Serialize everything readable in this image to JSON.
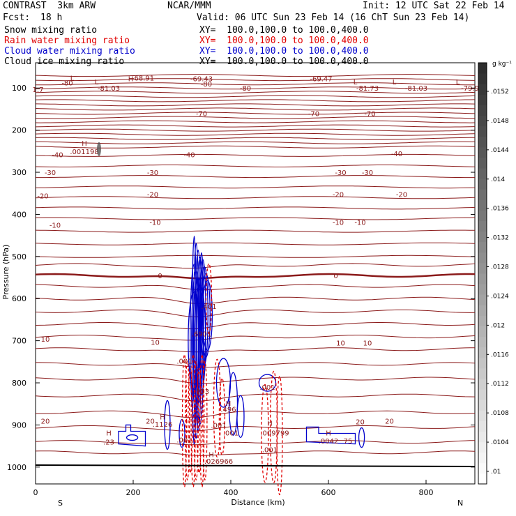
{
  "header": {
    "model": "CONTRAST  3km ARW",
    "center": "NCAR/MMM",
    "init": "Init: 12 UTC Sat 22 Feb 14",
    "fcst_label": "Fcst:",
    "fcst_value": "18 h",
    "valid": "Valid: 06 UTC Sun 23 Feb 14 (16 ChT Sun 23 Feb 14)"
  },
  "legend": [
    {
      "label": "Snow mixing ratio",
      "xy": "XY=  100.0,100.0 to 100.0,400.0",
      "color": "#000000"
    },
    {
      "label": "Rain water mixing ratio",
      "xy": "XY=  100.0,100.0 to 100.0,400.0",
      "color": "#e00000"
    },
    {
      "label": "Cloud water mixing ratio",
      "xy": "XY=  100.0,100.0 to 100.0,400.0",
      "color": "#0000cc"
    },
    {
      "label": "Cloud ice mixing ratio",
      "xy": "XY=  100.0,100.0 to 100.0,400.0",
      "color": "#000000"
    }
  ],
  "chart_data": {
    "type": "cross-section contour",
    "xlabel": "Distance (km)",
    "ylabel": "Pressure (hPa)",
    "xlim": [
      0,
      900
    ],
    "ylim": [
      1040,
      40
    ],
    "x_ticks": [
      "0",
      "200",
      "400",
      "600",
      "800"
    ],
    "y_ticks": [
      "100",
      "200",
      "300",
      "400",
      "500",
      "600",
      "700",
      "800",
      "900",
      "1000"
    ],
    "x_end_labels": {
      "left": "S",
      "right": "N"
    },
    "colorbar": {
      "unit": "g kg⁻¹",
      "labels": [
        ".0152",
        ".0148",
        ".0144",
        ".014",
        ".0136",
        ".0132",
        ".0128",
        ".0124",
        ".012",
        ".0116",
        ".0112",
        ".0108",
        ".0104",
        ".01"
      ],
      "range": [
        0.01,
        0.0156
      ]
    },
    "temperature_contours": [
      -80,
      -70,
      -60,
      -50,
      -40,
      -30,
      -20,
      -10,
      0,
      10,
      20
    ],
    "contour_labels": [
      {
        "text": "-80",
        "x": 65,
        "p": 87
      },
      {
        "text": "-80",
        "x": 350,
        "p": 90
      },
      {
        "text": "-80",
        "x": 430,
        "p": 100
      },
      {
        "text": "-68.91",
        "x": 220,
        "p": 76
      },
      {
        "text": "-69.43",
        "x": 340,
        "p": 77
      },
      {
        "text": "-69.47",
        "x": 585,
        "p": 77
      },
      {
        "text": "-81.03",
        "x": 150,
        "p": 100
      },
      {
        "text": "-81.73",
        "x": 680,
        "p": 100
      },
      {
        "text": "-81.03",
        "x": 780,
        "p": 100
      },
      {
        "text": "-79.9",
        "x": 890,
        "p": 100
      },
      {
        "text": "1.7",
        "x": 5,
        "p": 103
      },
      {
        "text": "-70",
        "x": 340,
        "p": 160
      },
      {
        "text": "-70",
        "x": 570,
        "p": 160
      },
      {
        "text": "-70",
        "x": 685,
        "p": 160
      },
      {
        "text": "-40",
        "x": 45,
        "p": 258
      },
      {
        "text": "-40",
        "x": 315,
        "p": 258
      },
      {
        "text": "-40",
        "x": 740,
        "p": 255
      },
      {
        "text": "-30",
        "x": 30,
        "p": 300
      },
      {
        "text": "-30",
        "x": 240,
        "p": 300
      },
      {
        "text": "-30",
        "x": 625,
        "p": 300
      },
      {
        "text": "-30",
        "x": 680,
        "p": 300
      },
      {
        "text": "-20",
        "x": 15,
        "p": 355
      },
      {
        "text": "-20",
        "x": 240,
        "p": 352
      },
      {
        "text": "-20",
        "x": 620,
        "p": 352
      },
      {
        "text": "-20",
        "x": 750,
        "p": 352
      },
      {
        "text": "-10",
        "x": 40,
        "p": 425
      },
      {
        "text": "-10",
        "x": 245,
        "p": 418
      },
      {
        "text": "-10",
        "x": 620,
        "p": 418
      },
      {
        "text": "-10",
        "x": 665,
        "p": 418
      },
      {
        "text": "0",
        "x": 255,
        "p": 545
      },
      {
        "text": "0",
        "x": 615,
        "p": 545
      },
      {
        "text": "10",
        "x": 20,
        "p": 696
      },
      {
        "text": "10",
        "x": 245,
        "p": 703
      },
      {
        "text": "10",
        "x": 625,
        "p": 705
      },
      {
        "text": "10",
        "x": 680,
        "p": 705
      },
      {
        "text": "20",
        "x": 20,
        "p": 890
      },
      {
        "text": "20",
        "x": 235,
        "p": 890
      },
      {
        "text": "20",
        "x": 665,
        "p": 892
      },
      {
        "text": "20",
        "x": 725,
        "p": 890
      }
    ],
    "extrema_labels": [
      {
        "text": "H",
        "x": 195,
        "p": 77,
        "color": "#8b1a1a"
      },
      {
        "text": "L",
        "x": 75,
        "p": 76,
        "color": "#8b1a1a"
      },
      {
        "text": "L",
        "x": 125,
        "p": 85,
        "color": "#8b1a1a"
      },
      {
        "text": "L",
        "x": 655,
        "p": 85,
        "color": "#8b1a1a"
      },
      {
        "text": "L",
        "x": 735,
        "p": 85,
        "color": "#8b1a1a"
      },
      {
        "text": "L",
        "x": 865,
        "p": 85,
        "color": "#8b1a1a"
      },
      {
        "text": "H",
        "x": 100,
        "p": 230,
        "color": "#000000"
      },
      {
        "text": ".001198",
        "x": 100,
        "p": 250,
        "color": "#000000"
      }
    ],
    "cloud_water_labels": [
      {
        "text": "H",
        "x": 150,
        "p": 918
      },
      {
        "text": ".23",
        "x": 150,
        "p": 940
      },
      {
        "text": "H",
        "x": 260,
        "p": 880
      },
      {
        "text": ".1126",
        "x": 260,
        "p": 898
      },
      {
        "text": ".401",
        "x": 355,
        "p": 618
      },
      {
        "text": ".6901",
        "x": 340,
        "p": 683
      },
      {
        "text": ".001",
        "x": 305,
        "p": 748
      },
      {
        "text": "H",
        "x": 395,
        "p": 848
      },
      {
        "text": ".496",
        "x": 395,
        "p": 862
      },
      {
        "text": ".001",
        "x": 400,
        "p": 918
      },
      {
        "text": ".001",
        "x": 475,
        "p": 810
      },
      {
        "text": "H",
        "x": 600,
        "p": 918
      },
      {
        "text": ".0042",
        "x": 600,
        "p": 937
      },
      {
        "text": "75",
        "x": 640,
        "p": 937
      }
    ],
    "rain_water_labels": [
      {
        "text": ".001",
        "x": 305,
        "p": 935
      },
      {
        "text": ".153",
        "x": 340,
        "p": 820
      },
      {
        "text": ".001",
        "x": 375,
        "p": 900
      },
      {
        "text": "H",
        "x": 480,
        "p": 895
      },
      {
        "text": ".009799",
        "x": 490,
        "p": 918
      },
      {
        "text": ".001",
        "x": 480,
        "p": 958
      },
      {
        "text": "H",
        "x": 360,
        "p": 970
      },
      {
        "text": ".026966",
        "x": 375,
        "p": 985
      }
    ]
  }
}
